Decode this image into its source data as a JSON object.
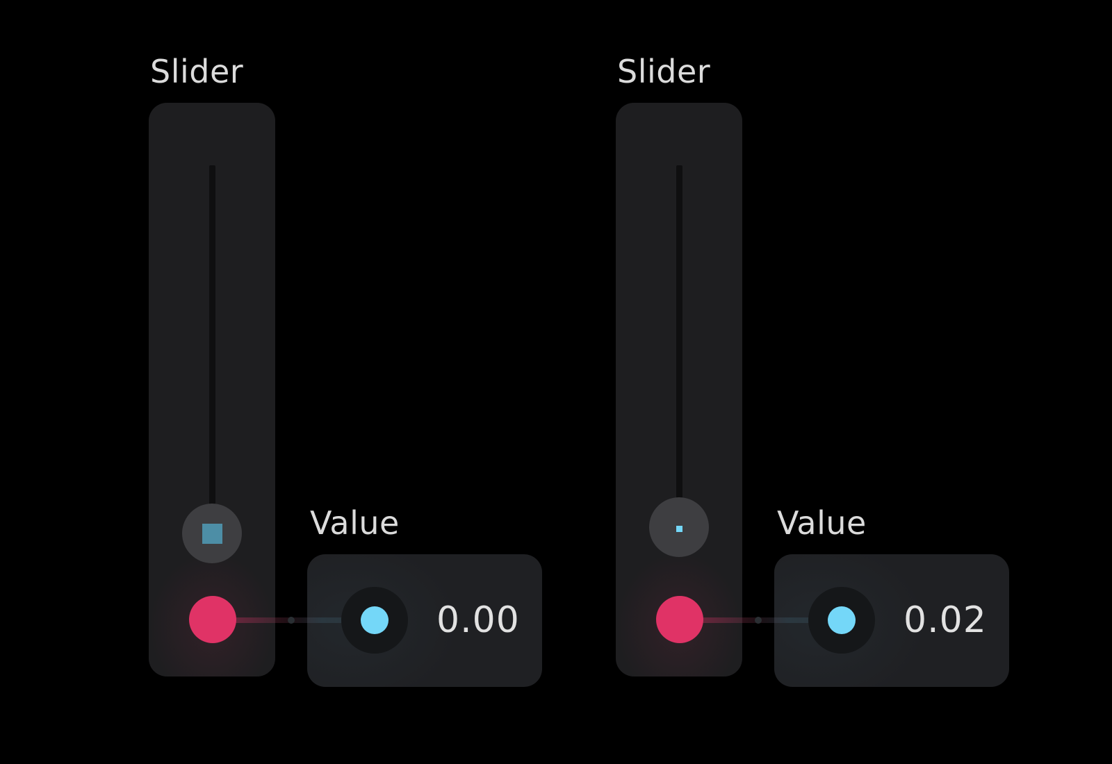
{
  "nodes": [
    {
      "slider": {
        "title": "Slider",
        "level": 0.0
      },
      "value": {
        "title": "Value",
        "readout": "0.00"
      }
    },
    {
      "slider": {
        "title": "Slider",
        "level": 0.02
      },
      "value": {
        "title": "Value",
        "readout": "0.02"
      }
    }
  ],
  "colors": {
    "background": "#000000",
    "card": "#1e1e20",
    "output_port": "#e03366",
    "input_port": "#74d7f8",
    "thumb": "#3e3e41",
    "text": "#dcdcdc"
  }
}
